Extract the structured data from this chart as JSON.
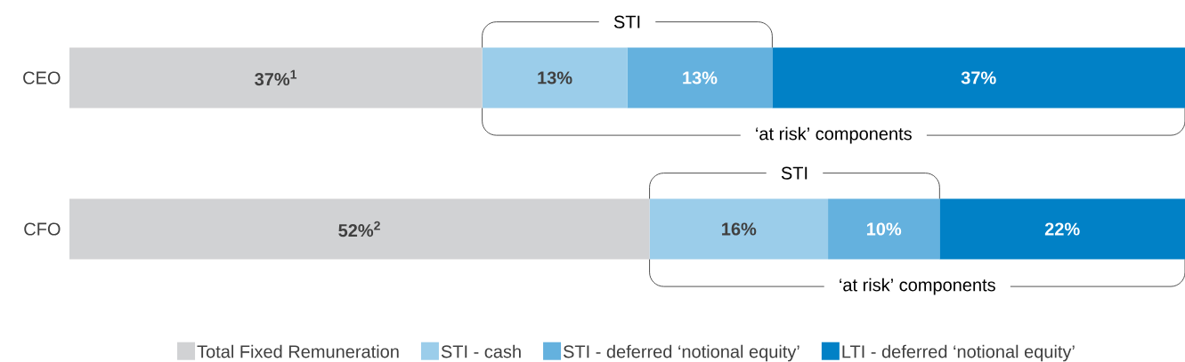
{
  "chart_data": {
    "type": "bar",
    "orientation": "horizontal",
    "stacked": true,
    "categories": [
      "CEO",
      "CFO"
    ],
    "xlim": [
      0,
      100
    ],
    "tick_labels": "y",
    "legend": "bottom",
    "series": [
      {
        "name": "Total Fixed Remuneration",
        "color": "#d1d2d4",
        "values": [
          37,
          52
        ],
        "value_labels": [
          "37%$^{1}$",
          "52%$^{2}$"
        ]
      },
      {
        "name": "STI - cash",
        "color": "#9bcdea",
        "values": [
          13,
          16
        ],
        "value_labels": [
          "13%",
          "16%"
        ]
      },
      {
        "name": "STI - deferred ‘notional equity’",
        "color": "#64b1de",
        "values": [
          13,
          10
        ],
        "value_labels": [
          "13%",
          "10%"
        ]
      },
      {
        "name": "LTI - deferred ‘notional equity’",
        "color": "#0181c6",
        "values": [
          37,
          22
        ],
        "value_labels": [
          "37%",
          "22%"
        ]
      }
    ],
    "annotations": [
      "STI",
      "‘at risk’ components",
      "STI",
      "‘at risk’ components"
    ]
  }
}
